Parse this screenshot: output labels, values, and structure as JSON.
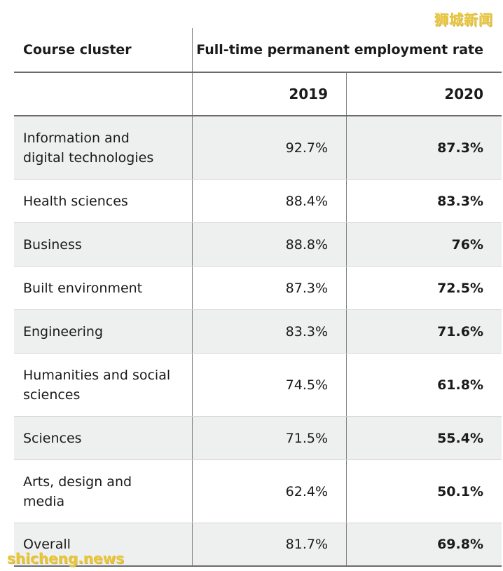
{
  "watermark_top": "狮城新闻",
  "watermark_bottom": "shicheng.news",
  "table": {
    "header_cluster": "Course cluster",
    "header_rate": "Full-time permanent employment rate",
    "year_1": "2019",
    "year_2": "2020",
    "rows": [
      {
        "label_line1": "Information and",
        "label_line2": "digital technologies",
        "v2019": "92.7%",
        "v2020": "87.3%"
      },
      {
        "label_line1": "Health sciences",
        "label_line2": "",
        "v2019": "88.4%",
        "v2020": "83.3%"
      },
      {
        "label_line1": "Business",
        "label_line2": "",
        "v2019": "88.8%",
        "v2020": "76%"
      },
      {
        "label_line1": "Built environment",
        "label_line2": "",
        "v2019": "87.3%",
        "v2020": "72.5%"
      },
      {
        "label_line1": "Engineering",
        "label_line2": "",
        "v2019": "83.3%",
        "v2020": "71.6%"
      },
      {
        "label_line1": "Humanities and social",
        "label_line2": "sciences",
        "v2019": "74.5%",
        "v2020": "61.8%"
      },
      {
        "label_line1": "Sciences",
        "label_line2": "",
        "v2019": "71.5%",
        "v2020": "55.4%"
      },
      {
        "label_line1": "Arts, design and",
        "label_line2": "media",
        "v2019": "62.4%",
        "v2020": "50.1%"
      },
      {
        "label_line1": "Overall",
        "label_line2": "",
        "v2019": "81.7%",
        "v2020": "69.8%"
      }
    ]
  },
  "colors": {
    "shaded_row": "#eef0ef",
    "watermark": "#e8c436"
  }
}
